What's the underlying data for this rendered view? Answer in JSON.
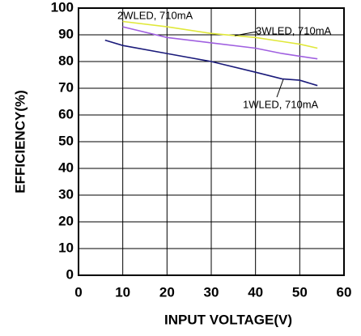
{
  "chart_data": {
    "type": "line",
    "x_label": "INPUT VOLTAGE(V)",
    "y_label": "EFFICIENCY(%)",
    "x": [
      6,
      10,
      20,
      30,
      40,
      46,
      50,
      54
    ],
    "series": [
      {
        "name": "1WLED, 710mA",
        "color": "#1a1a7a",
        "values": [
          88,
          86,
          83,
          80,
          76,
          73.5,
          73,
          71
        ]
      },
      {
        "name": "2WLED, 710mA",
        "color": "#e0e83a",
        "values": [
          null,
          95,
          93,
          90.5,
          89,
          87.5,
          86.5,
          85
        ]
      },
      {
        "name": "3WLED, 710mA",
        "color": "#a060e0",
        "values": [
          null,
          93,
          89,
          87,
          85,
          83,
          82,
          81
        ]
      }
    ],
    "xlim": [
      0,
      60
    ],
    "xticks": [
      0,
      10,
      20,
      30,
      40,
      50,
      60
    ],
    "ylim": [
      0,
      100
    ],
    "yticks": [
      0,
      10,
      20,
      30,
      40,
      50,
      60,
      70,
      80,
      90,
      100
    ],
    "grid": true
  }
}
